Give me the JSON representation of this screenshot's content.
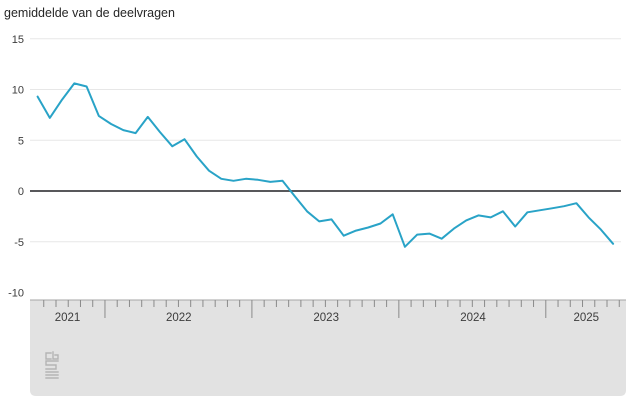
{
  "title": "gemiddelde van de deelvragen",
  "colors": {
    "line": "#29a3c7",
    "grid": "#e7e7e7",
    "zero_line": "#58585b",
    "axis_band": "#e2e2e2",
    "axis_band_border": "#a6a6a6",
    "tick": "#8a8a8a",
    "axis_label": "#3c3c3c",
    "title": "#262626",
    "logo": "#b4b4b4",
    "background": "#ffffff"
  },
  "chart_data": {
    "type": "line",
    "title": "gemiddelde van de deelvragen",
    "frequency": "monthly",
    "x": [
      "2021-07",
      "2021-08",
      "2021-09",
      "2021-10",
      "2021-11",
      "2021-12",
      "2022-01",
      "2022-02",
      "2022-03",
      "2022-04",
      "2022-05",
      "2022-06",
      "2022-07",
      "2022-08",
      "2022-09",
      "2022-10",
      "2022-11",
      "2022-12",
      "2023-01",
      "2023-02",
      "2023-03",
      "2023-04",
      "2023-05",
      "2023-06",
      "2023-07",
      "2023-08",
      "2023-09",
      "2023-10",
      "2023-11",
      "2023-12",
      "2024-01",
      "2024-02",
      "2024-03",
      "2024-04",
      "2024-05",
      "2024-06",
      "2024-07",
      "2024-08",
      "2024-09",
      "2024-10",
      "2024-11",
      "2024-12",
      "2025-01",
      "2025-02",
      "2025-03",
      "2025-04",
      "2025-05",
      "2025-06"
    ],
    "values": [
      9.3,
      7.2,
      9.0,
      10.6,
      10.3,
      7.4,
      6.6,
      6.0,
      5.7,
      7.3,
      5.8,
      4.4,
      5.1,
      3.4,
      2.0,
      1.2,
      1.0,
      1.2,
      1.1,
      0.9,
      1.0,
      -0.5,
      -2.0,
      -3.0,
      -2.8,
      -4.4,
      -3.9,
      -3.6,
      -3.2,
      -2.3,
      -5.5,
      -4.3,
      -4.2,
      -4.7,
      -3.7,
      -2.9,
      -2.4,
      -2.6,
      -2.0,
      -3.5,
      -2.1,
      -1.9,
      -1.7,
      -1.5,
      -1.2,
      -2.6,
      -3.8,
      -5.2
    ],
    "ylim": [
      -10,
      15
    ],
    "yticks": [
      15,
      10,
      5,
      0,
      -5,
      -10
    ],
    "xtick_year_labels": [
      "2021",
      "2022",
      "2023",
      "2024",
      "2025"
    ],
    "grid": "horizontal",
    "legend": "none"
  },
  "logo": {
    "name": "cbs-logo"
  }
}
